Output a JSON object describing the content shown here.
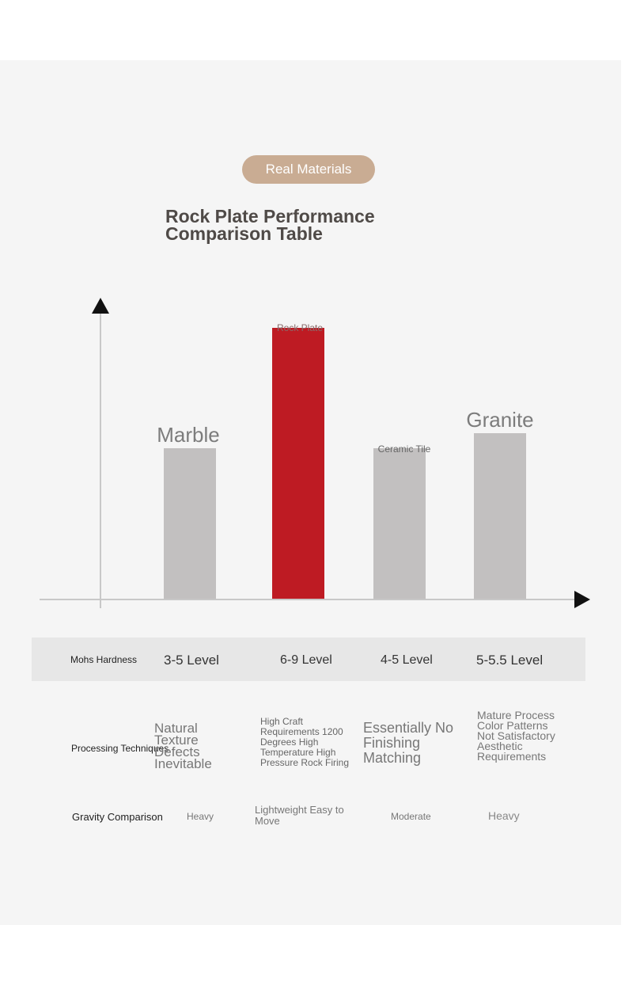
{
  "badge": "Real Materials",
  "title_line1": "Rock Plate Performance",
  "title_line2": "Comparison Table",
  "chart_data": {
    "type": "bar",
    "categories": [
      "Marble",
      "Rock Plate",
      "Ceramic Tile",
      "Granite"
    ],
    "values": [
      5,
      9,
      5,
      5.5
    ],
    "ylim": [
      0,
      10
    ],
    "colors": [
      "#c2c0c0",
      "#be1b23",
      "#c2c0c0",
      "#c2c0c0"
    ]
  },
  "rows": {
    "hardness": {
      "label": "Mohs Hardness",
      "values": [
        "3-5 Level",
        "6-9 Level",
        "4-5 Level",
        "5-5.5 Level"
      ]
    },
    "processing": {
      "label": "Processing Techniques",
      "values": [
        "Natural Texture Defects Inevitable",
        "High Craft Requirements 1200 Degrees High Temperature High Pressure Rock Firing",
        "Essentially No Finishing Matching",
        "Mature Process Color Patterns Not Satisfactory Aesthetic Requirements"
      ]
    },
    "gravity": {
      "label": "Gravity Comparison",
      "values": [
        "Heavy",
        "Lightweight Easy to Move",
        "Moderate",
        "Heavy"
      ]
    }
  }
}
